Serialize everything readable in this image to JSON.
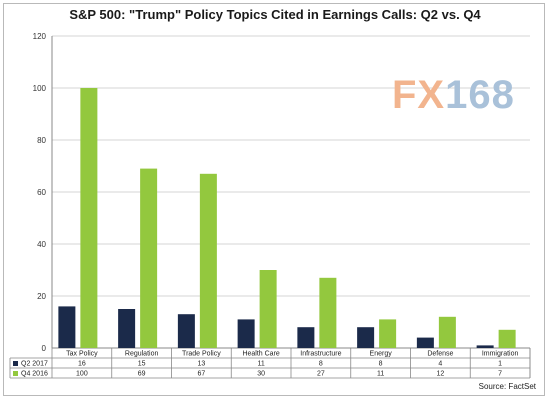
{
  "chart_data": {
    "type": "bar",
    "title": "S&P 500: \"Trump\" Policy Topics Cited in Earnings Calls: Q2 vs. Q4",
    "categories": [
      "Tax Policy",
      "Regulation",
      "Trade Policy",
      "Health Care",
      "Infrastructure",
      "Energy",
      "Defense",
      "Immigration"
    ],
    "series": [
      {
        "name": "Q2 2017",
        "values": [
          16,
          15,
          13,
          11,
          8,
          8,
          4,
          1
        ],
        "color": "#1b2a4a"
      },
      {
        "name": "Q4 2016",
        "values": [
          100,
          69,
          67,
          30,
          27,
          11,
          12,
          7
        ],
        "color": "#93c83e"
      }
    ],
    "ylim": [
      0,
      120
    ],
    "yticks": [
      0,
      20,
      40,
      60,
      80,
      100,
      120
    ],
    "grid": true,
    "legend": "data-table",
    "source": "Source: FactSet"
  },
  "watermark": {
    "prefix": "FX",
    "digits": "168"
  }
}
